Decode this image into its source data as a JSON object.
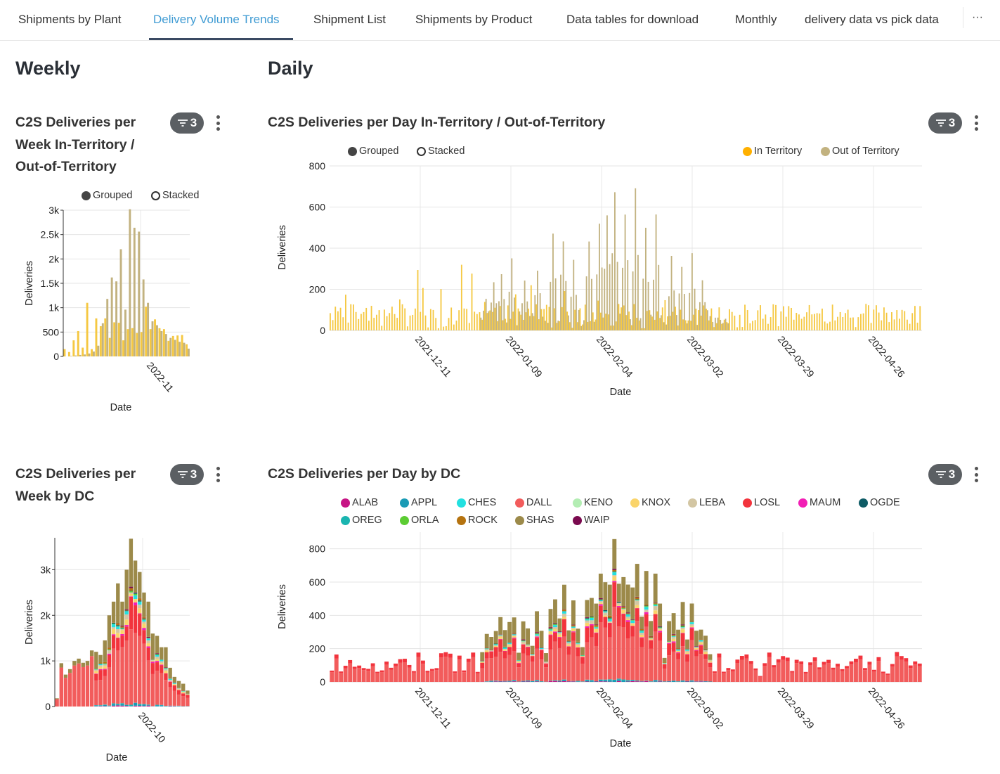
{
  "tabs": [
    {
      "label": "Shipments by Plant",
      "active": false
    },
    {
      "label": "Delivery Volume Trends",
      "active": true
    },
    {
      "label": "Shipment List",
      "active": false
    },
    {
      "label": "Shipments by Product",
      "active": false
    },
    {
      "label": "Data tables for download",
      "active": false
    },
    {
      "label": "Monthly",
      "active": false
    },
    {
      "label": "delivery data vs pick data",
      "active": false
    }
  ],
  "more_label": "···",
  "sections": {
    "weekly": "Weekly",
    "daily": "Daily"
  },
  "cards": {
    "week_territory": {
      "title_lines": [
        "C2S Deliveries per",
        "Week In-Territory /",
        "Out-of-Territory"
      ],
      "filter_count": "3"
    },
    "day_territory": {
      "title": "C2S Deliveries per Day In-Territory / Out-of-Territory",
      "filter_count": "3"
    },
    "week_dc": {
      "title_lines": [
        "C2S Deliveries per",
        "Week by DC"
      ],
      "filter_count": "3"
    },
    "day_dc": {
      "title": "C2S Deliveries per Day by DC",
      "filter_count": "3"
    }
  },
  "mode_toggle": {
    "grouped": "Grouped",
    "stacked": "Stacked",
    "selected": "grouped"
  },
  "colors": {
    "in_territory": "#F5C842",
    "out_of_territory": "#C2B280",
    "grid": "#e5e5e5",
    "tab_active": "#3f9bd3"
  },
  "chart_data": [
    {
      "id": "week_territory",
      "type": "bar",
      "mode": "grouped",
      "xlabel": "Date",
      "ylabel": "Deliveries",
      "ylim": [
        0,
        3000
      ],
      "yticks": [
        0,
        500,
        1000,
        1500,
        2000,
        2500,
        3000
      ],
      "ytick_labels": [
        "0",
        "500",
        "1k",
        "1.5k",
        "2k",
        "2.5k",
        "3k"
      ],
      "xtick_labels": [
        "2022-11"
      ],
      "series": [
        {
          "name": "In Territory",
          "color": "#F5C842",
          "values": [
            150,
            90,
            330,
            520,
            180,
            1100,
            150,
            780,
            620,
            780,
            380,
            700,
            690,
            330,
            560,
            580,
            480,
            500,
            1020,
            560,
            760,
            580,
            560,
            320,
            420,
            430,
            440,
            250
          ]
        },
        {
          "name": "Out of Territory",
          "color": "#C2B280",
          "values": [
            0,
            10,
            20,
            30,
            40,
            60,
            100,
            220,
            680,
            1180,
            1620,
            1540,
            2200,
            960,
            3020,
            2640,
            2560,
            1580,
            1100,
            720,
            640,
            520,
            460,
            380,
            340,
            300,
            280,
            160
          ]
        }
      ]
    },
    {
      "id": "day_territory",
      "type": "bar",
      "mode": "grouped",
      "title": "",
      "xlabel": "Date",
      "ylabel": "Deliveries",
      "ylim": [
        0,
        800
      ],
      "yticks": [
        0,
        200,
        400,
        600,
        800
      ],
      "xtick_labels": [
        "2021-12-11",
        "2022-01-09",
        "2022-02-04",
        "2022-03-02",
        "2022-03-29",
        "2022-04-26"
      ],
      "legend": [
        "In Territory",
        "Out of Territory"
      ],
      "in_peaks": [
        [
          2,
          150
        ],
        [
          6,
          220
        ],
        [
          9,
          120
        ],
        [
          14,
          130
        ],
        [
          20,
          220
        ],
        [
          27,
          160
        ],
        [
          34,
          350
        ],
        [
          36,
          230
        ],
        [
          43,
          210
        ],
        [
          51,
          340
        ],
        [
          55,
          360
        ],
        [
          60,
          160
        ],
        [
          66,
          150
        ],
        [
          72,
          200
        ],
        [
          78,
          260
        ],
        [
          84,
          140
        ],
        [
          91,
          220
        ],
        [
          98,
          190
        ],
        [
          104,
          170
        ],
        [
          112,
          150
        ],
        [
          118,
          140
        ],
        [
          124,
          130
        ],
        [
          130,
          150
        ],
        [
          136,
          120
        ],
        [
          142,
          130
        ],
        [
          148,
          140
        ],
        [
          155,
          120
        ],
        [
          162,
          100
        ],
        [
          170,
          110
        ],
        [
          178,
          130
        ],
        [
          186,
          120
        ],
        [
          193,
          110
        ],
        [
          200,
          100
        ],
        [
          208,
          90
        ],
        [
          215,
          140
        ],
        [
          222,
          110
        ]
      ],
      "out_peaks": [
        [
          60,
          180
        ],
        [
          63,
          250
        ],
        [
          66,
          330
        ],
        [
          70,
          360
        ],
        [
          75,
          320
        ],
        [
          80,
          350
        ],
        [
          86,
          480
        ],
        [
          90,
          500
        ],
        [
          94,
          400
        ],
        [
          100,
          520
        ],
        [
          104,
          600
        ],
        [
          107,
          640
        ],
        [
          110,
          810
        ],
        [
          114,
          660
        ],
        [
          118,
          700
        ],
        [
          122,
          560
        ],
        [
          126,
          600
        ],
        [
          132,
          380
        ],
        [
          136,
          390
        ],
        [
          140,
          380
        ],
        [
          144,
          260
        ]
      ]
    },
    {
      "id": "week_dc",
      "type": "bar",
      "mode": "stacked",
      "xlabel": "Date",
      "ylabel": "Deliveries",
      "ylim": [
        0,
        3700
      ],
      "yticks": [
        0,
        1000,
        2000,
        3000
      ],
      "ytick_labels": [
        "0",
        "1k",
        "2k",
        "3k"
      ],
      "xtick_labels": [
        "2022-10"
      ],
      "totals": [
        180,
        950,
        700,
        820,
        1000,
        1050,
        960,
        1000,
        1230,
        1200,
        1130,
        1450,
        2000,
        2300,
        2700,
        2300,
        3000,
        3680,
        3200,
        2950,
        2500,
        2300,
        1600,
        1550,
        1300,
        1300,
        850,
        650,
        560,
        500,
        350
      ]
    },
    {
      "id": "day_dc",
      "type": "bar",
      "mode": "stacked",
      "xlabel": "Date",
      "ylabel": "Deliveries",
      "ylim": [
        0,
        900
      ],
      "yticks": [
        0,
        200,
        400,
        600,
        800
      ],
      "xtick_labels": [
        "2021-12-11",
        "2022-01-09",
        "2022-02-04",
        "2022-03-02",
        "2022-03-29",
        "2022-04-26"
      ],
      "legend": [
        {
          "name": "ALAB",
          "color": "#C71585"
        },
        {
          "name": "APPL",
          "color": "#1A9BB5"
        },
        {
          "name": "CHES",
          "color": "#22E0E0"
        },
        {
          "name": "DALL",
          "color": "#F25C5C"
        },
        {
          "name": "KENO",
          "color": "#B3EDB3"
        },
        {
          "name": "KNOX",
          "color": "#FAD46A"
        },
        {
          "name": "LEBA",
          "color": "#D3C6A3"
        },
        {
          "name": "LOSL",
          "color": "#F2343D"
        },
        {
          "name": "MAUM",
          "color": "#F21EB5"
        },
        {
          "name": "OGDE",
          "color": "#0E5C66"
        },
        {
          "name": "OREG",
          "color": "#1AB5B0"
        },
        {
          "name": "ORLA",
          "color": "#5CCC33"
        },
        {
          "name": "ROCK",
          "color": "#B5730F"
        },
        {
          "name": "SHAS",
          "color": "#9C8A4A"
        },
        {
          "name": "WAIP",
          "color": "#7A0A4F"
        }
      ]
    }
  ]
}
